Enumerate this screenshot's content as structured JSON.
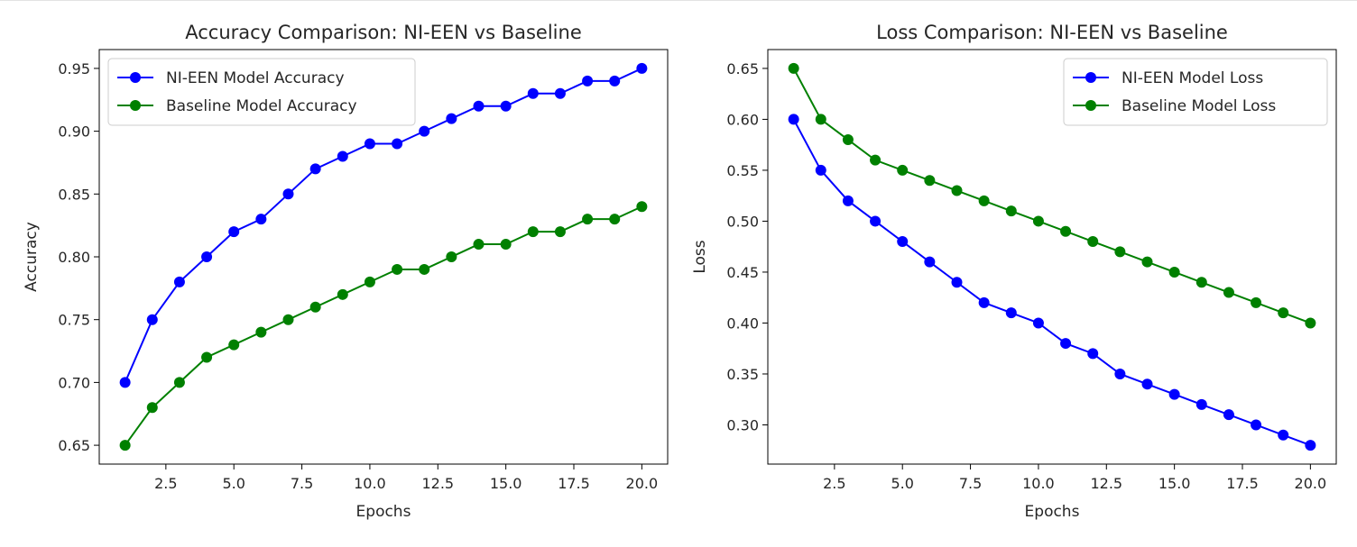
{
  "chart_data": [
    {
      "type": "line",
      "title": "Accuracy Comparison: NI-EEN vs Baseline",
      "xlabel": "Epochs",
      "ylabel": "Accuracy",
      "xlim": [
        0.05,
        20.95
      ],
      "ylim": [
        0.635,
        0.965
      ],
      "xticks": [
        2.5,
        5.0,
        7.5,
        10.0,
        12.5,
        15.0,
        17.5,
        20.0
      ],
      "yticks": [
        0.65,
        0.7,
        0.75,
        0.8,
        0.85,
        0.9,
        0.95
      ],
      "grid": false,
      "legend_position": "top-left",
      "x": [
        1,
        2,
        3,
        4,
        5,
        6,
        7,
        8,
        9,
        10,
        11,
        12,
        13,
        14,
        15,
        16,
        17,
        18,
        19,
        20
      ],
      "series": [
        {
          "name": "NI-EEN Model Accuracy",
          "color": "#0000ff",
          "values": [
            0.7,
            0.75,
            0.78,
            0.8,
            0.82,
            0.83,
            0.85,
            0.87,
            0.88,
            0.89,
            0.89,
            0.9,
            0.91,
            0.92,
            0.92,
            0.93,
            0.93,
            0.94,
            0.94,
            0.95
          ]
        },
        {
          "name": "Baseline Model Accuracy",
          "color": "#008000",
          "values": [
            0.65,
            0.68,
            0.7,
            0.72,
            0.73,
            0.74,
            0.75,
            0.76,
            0.77,
            0.78,
            0.79,
            0.79,
            0.8,
            0.81,
            0.81,
            0.82,
            0.82,
            0.83,
            0.83,
            0.84
          ]
        }
      ]
    },
    {
      "type": "line",
      "title": "Loss Comparison: NI-EEN vs Baseline",
      "xlabel": "Epochs",
      "ylabel": "Loss",
      "xlim": [
        0.05,
        20.95
      ],
      "ylim": [
        0.2615,
        0.6685
      ],
      "xticks": [
        2.5,
        5.0,
        7.5,
        10.0,
        12.5,
        15.0,
        17.5,
        20.0
      ],
      "yticks": [
        0.3,
        0.35,
        0.4,
        0.45,
        0.5,
        0.55,
        0.6,
        0.65
      ],
      "grid": false,
      "legend_position": "top-right",
      "x": [
        1,
        2,
        3,
        4,
        5,
        6,
        7,
        8,
        9,
        10,
        11,
        12,
        13,
        14,
        15,
        16,
        17,
        18,
        19,
        20
      ],
      "series": [
        {
          "name": "NI-EEN Model Loss",
          "color": "#0000ff",
          "values": [
            0.6,
            0.55,
            0.52,
            0.5,
            0.48,
            0.46,
            0.44,
            0.42,
            0.41,
            0.4,
            0.38,
            0.37,
            0.35,
            0.34,
            0.33,
            0.32,
            0.31,
            0.3,
            0.29,
            0.28
          ]
        },
        {
          "name": "Baseline Model Loss",
          "color": "#008000",
          "values": [
            0.65,
            0.6,
            0.58,
            0.56,
            0.55,
            0.54,
            0.53,
            0.52,
            0.51,
            0.5,
            0.49,
            0.48,
            0.47,
            0.46,
            0.45,
            0.44,
            0.43,
            0.42,
            0.41,
            0.4
          ]
        }
      ]
    }
  ]
}
